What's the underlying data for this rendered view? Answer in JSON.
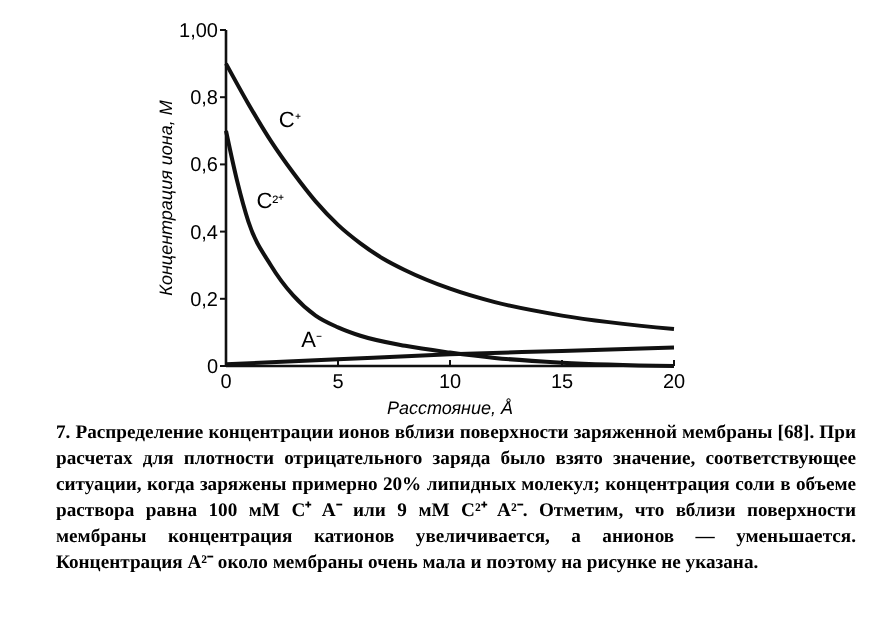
{
  "chart_data": {
    "type": "line",
    "xlabel": "Расстояние, Å",
    "ylabel": "Концентрация иона, М",
    "xlim": [
      0,
      20
    ],
    "xticks": [
      0,
      5,
      10,
      15,
      20
    ],
    "ylim": [
      0,
      1
    ],
    "yticks": [
      {
        "value": 0,
        "label": "0"
      },
      {
        "value": 0.2,
        "label": "0,2"
      },
      {
        "value": 0.4,
        "label": "0,4"
      },
      {
        "value": 0.6,
        "label": "0,6"
      },
      {
        "value": 0.8,
        "label": "0,8"
      },
      {
        "value": 1,
        "label": "1,00"
      }
    ],
    "grid": false,
    "marker": "none",
    "line_style": "solid",
    "series": [
      {
        "name": "C⁺",
        "color": "#111111",
        "x": [
          0,
          1,
          2,
          3,
          4,
          5,
          6,
          7,
          8,
          10,
          12,
          15,
          20
        ],
        "values": [
          0.9,
          0.78,
          0.67,
          0.575,
          0.49,
          0.42,
          0.365,
          0.32,
          0.285,
          0.23,
          0.19,
          0.15,
          0.11
        ]
      },
      {
        "name": "C²⁺",
        "color": "#111111",
        "x": [
          0,
          0.5,
          1,
          2,
          3,
          4,
          5,
          6,
          8,
          10,
          12,
          15,
          20
        ],
        "values": [
          0.7,
          0.55,
          0.43,
          0.3,
          0.21,
          0.15,
          0.115,
          0.09,
          0.06,
          0.04,
          0.024,
          0.01,
          0.0
        ]
      },
      {
        "name": "A⁻",
        "color": "#111111",
        "x": [
          0,
          3,
          5,
          10,
          15,
          20
        ],
        "values": [
          0.005,
          0.014,
          0.02,
          0.035,
          0.045,
          0.055
        ]
      }
    ],
    "annotations": [
      "7. Распределение концентрации ионов вблизи поверхности заряженной мембраны [68]. При расчетах для плотности отрицательного заряда было взято значение, соответствующее ситуации, когда заряжены примерно 20% липидных молекул; концентрация соли в объеме раствора равна 100 мМ C⁺ A⁻ или 9 мМ C²⁺ A²⁻. Отметим, что вблизи поверхности мембраны концентрация катионов увеличивается, а анионов — уменьшается. Концентрация A²⁻ около мембраны очень мала и поэтому на рисунке не указана."
    ]
  }
}
